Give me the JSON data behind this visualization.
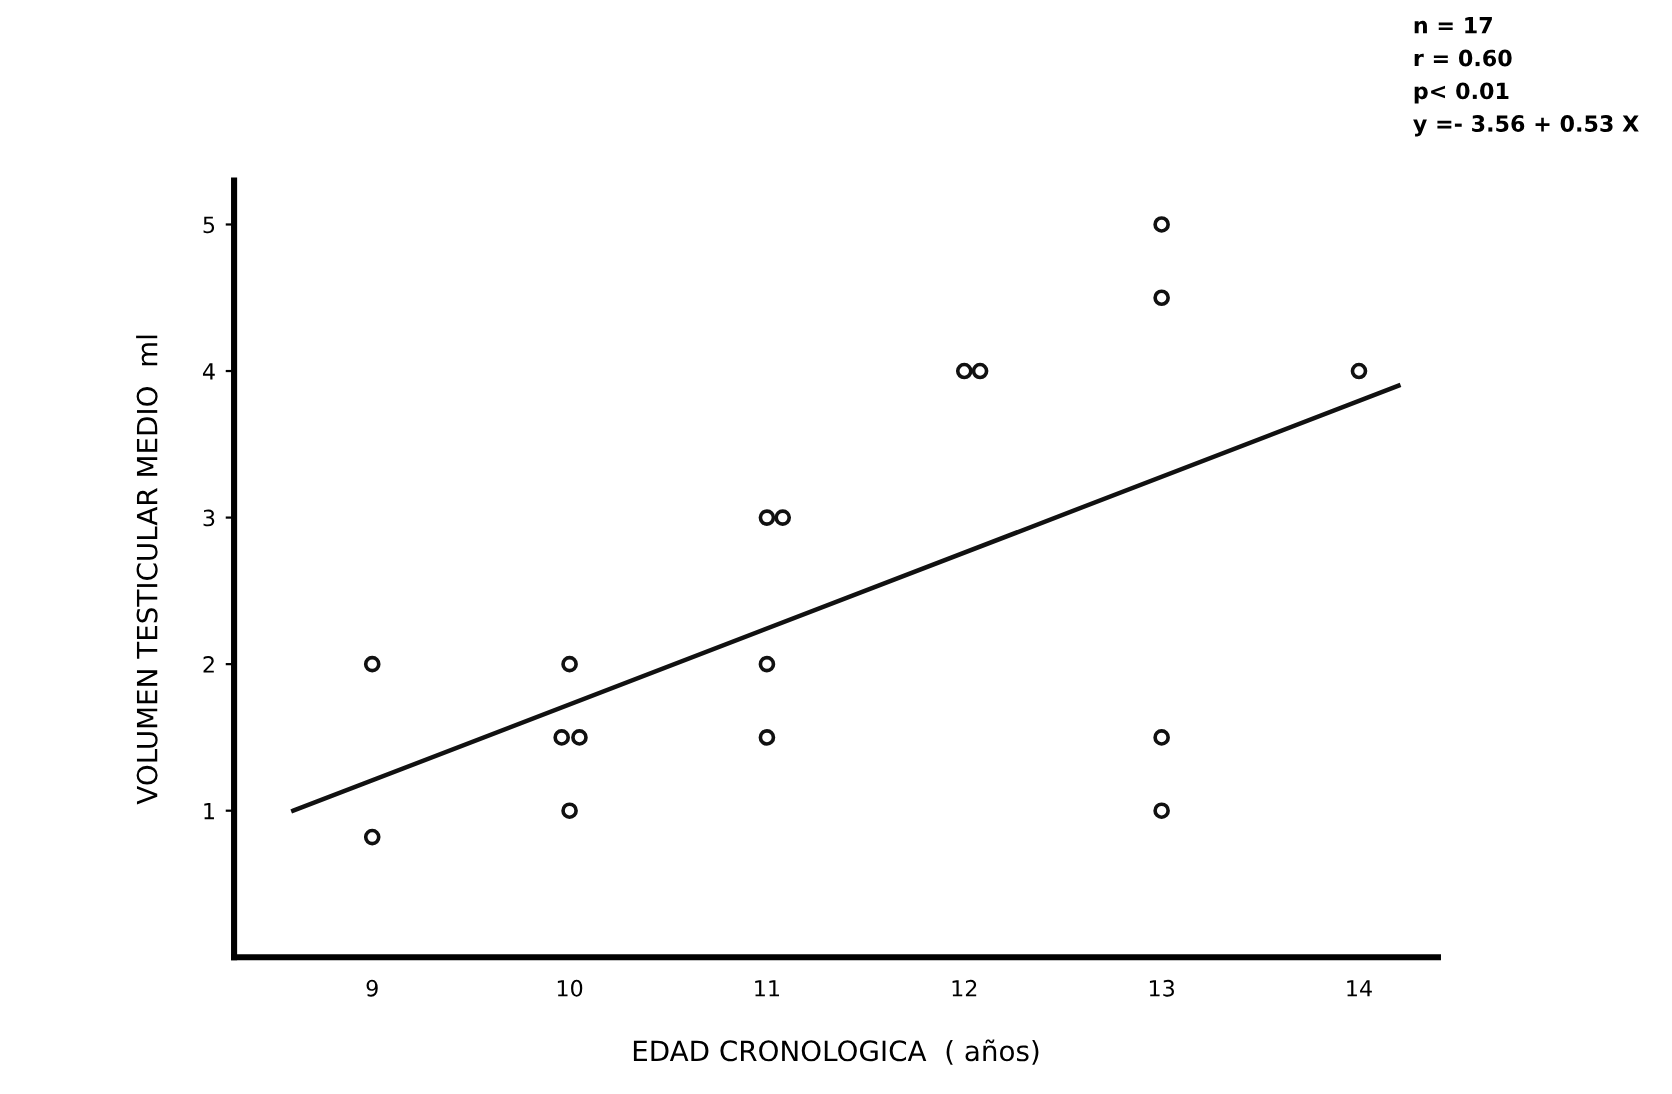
{
  "chart_data": {
    "type": "scatter",
    "xlabel": "EDAD CRONOLOGICA  ( años)",
    "ylabel": "VOLUMEN TESTICULAR MEDIO  ml",
    "xlim": [
      8.3,
      14.4
    ],
    "xticks": [
      9,
      10,
      11,
      12,
      13,
      14
    ],
    "ylim": [
      0,
      5.3
    ],
    "yticks": [
      1,
      2,
      3,
      4,
      5
    ],
    "grid": false,
    "series": [
      {
        "marker": "circle",
        "color": "#111111",
        "x": [
          9,
          9,
          10,
          9.96,
          10.05,
          10,
          11.0,
          11.08,
          11,
          11,
          12.0,
          12.08,
          13,
          13,
          13,
          13,
          14
        ],
        "values": [
          2,
          0.82,
          2,
          1.5,
          1.5,
          1,
          3,
          3,
          2,
          1.5,
          4,
          4,
          5,
          4.5,
          1.5,
          1,
          4
        ]
      },
      {
        "type": "line",
        "marker": "none",
        "color": "#111111",
        "x": [
          8.6,
          14.2
        ],
        "values": [
          1.0,
          3.9
        ]
      }
    ],
    "annotations": [
      "n = 17",
      "r = 0.60",
      "p< 0.01",
      "y =- 3.56 + 0.53 X"
    ]
  }
}
